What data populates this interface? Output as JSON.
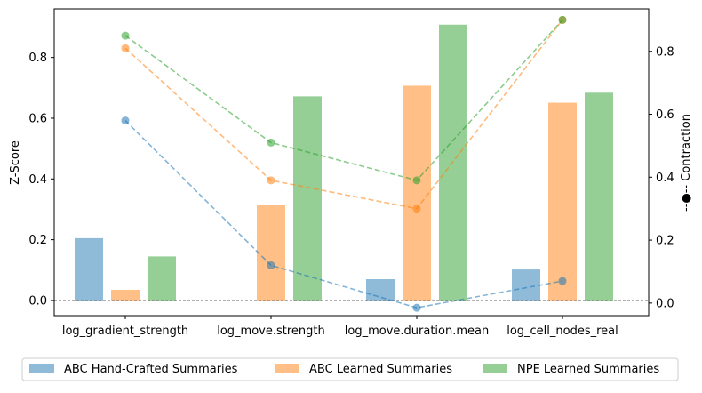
{
  "chart_data": {
    "type": "bar",
    "categories": [
      "log_gradient_strength",
      "log_move.strength",
      "log_move.duration.mean",
      "log_cell_nodes_real"
    ],
    "ylabel": "Z-Score",
    "y2label": "--●-- Contraction",
    "ylim": [
      -0.05,
      0.96
    ],
    "y2lim": [
      -0.04,
      0.935
    ],
    "yticks": [
      "0.0",
      "0.2",
      "0.4",
      "0.6",
      "0.8"
    ],
    "y2ticks": [
      "0.0",
      "0.2",
      "0.4",
      "0.6",
      "0.8"
    ],
    "series": [
      {
        "name": "ABC Hand-Crafted Summaries",
        "color": "#8fbbd9",
        "values": [
          0.205,
          0.0,
          0.07,
          0.102
        ]
      },
      {
        "name": "ABC Learned Summaries",
        "color": "#ffbf86",
        "values": [
          0.035,
          0.313,
          0.707,
          0.651
        ]
      },
      {
        "name": "NPE Learned Summaries",
        "color": "#95cf95",
        "values": [
          0.145,
          0.672,
          0.908,
          0.684
        ]
      }
    ],
    "contraction": [
      {
        "color": "#1f77b4",
        "values": [
          0.58,
          0.12,
          -0.015,
          0.07
        ]
      },
      {
        "color": "#ff7f0e",
        "values": [
          0.81,
          0.39,
          0.3,
          0.9
        ]
      },
      {
        "color": "#2ca02c",
        "values": [
          0.85,
          0.51,
          0.39,
          0.9
        ]
      }
    ],
    "legend": "bottom-center",
    "zero_line": true
  }
}
